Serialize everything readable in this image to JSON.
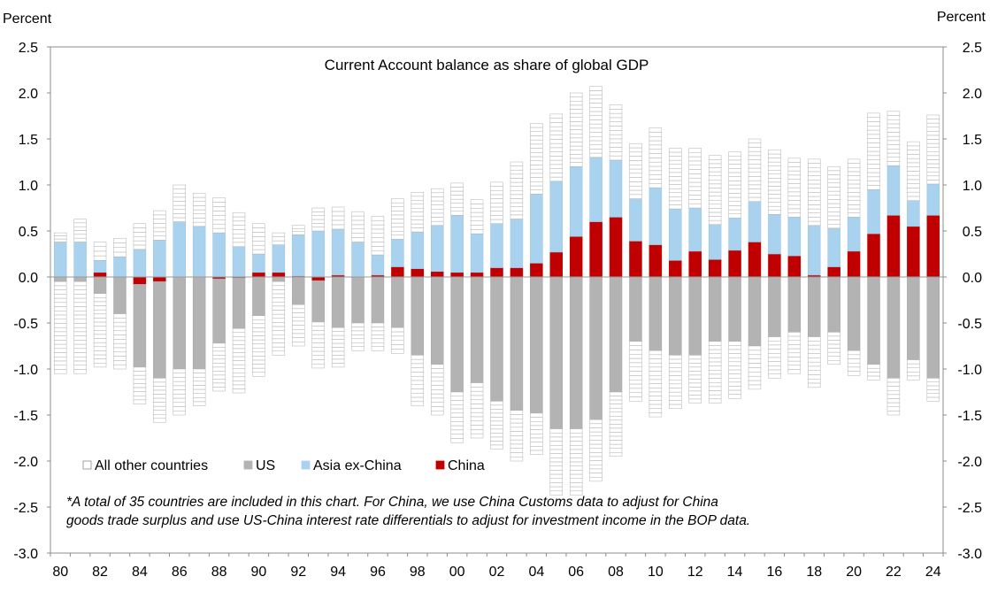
{
  "chart_data": {
    "type": "bar",
    "stacked": true,
    "title": "Current Account balance as share of global GDP",
    "ylabel_left": "Percent",
    "ylabel_right": "Percent",
    "ylim": [
      -3.0,
      2.5
    ],
    "y_ticks": [
      "2.5",
      "2.0",
      "1.5",
      "1.0",
      "0.5",
      "0.0",
      "-0.5",
      "-1.0",
      "-1.5",
      "-2.0",
      "-2.5",
      "-3.0"
    ],
    "x_ticks": [
      "80",
      "82",
      "84",
      "86",
      "88",
      "90",
      "92",
      "94",
      "96",
      "98",
      "00",
      "02",
      "04",
      "06",
      "08",
      "10",
      "12",
      "14",
      "16",
      "18",
      "20",
      "22",
      "24"
    ],
    "categories": [
      "1980",
      "1981",
      "1982",
      "1983",
      "1984",
      "1985",
      "1986",
      "1987",
      "1988",
      "1989",
      "1990",
      "1991",
      "1992",
      "1993",
      "1994",
      "1995",
      "1996",
      "1997",
      "1998",
      "1999",
      "2000",
      "2001",
      "2002",
      "2003",
      "2004",
      "2005",
      "2006",
      "2007",
      "2008",
      "2009",
      "2010",
      "2011",
      "2012",
      "2013",
      "2014",
      "2015",
      "2016",
      "2017",
      "2018",
      "2019",
      "2020",
      "2021",
      "2022",
      "2023",
      "2024"
    ],
    "legend_position": "bottom-left",
    "grid": false,
    "colors": {
      "All other countries": "#ffffff",
      "US": "#b3b3b3",
      "Asia ex-China": "#a9d2ee",
      "China": "#c00000"
    },
    "series": [
      {
        "name": "China",
        "values": [
          0,
          0,
          0.05,
          0,
          -0.08,
          -0.05,
          0,
          0,
          -0.02,
          -0.01,
          0.05,
          0.05,
          0.01,
          -0.04,
          0.02,
          0,
          0.02,
          0.11,
          0.09,
          0.06,
          0.05,
          0.05,
          0.1,
          0.1,
          0.15,
          0.27,
          0.44,
          0.6,
          0.65,
          0.39,
          0.35,
          0.18,
          0.28,
          0.19,
          0.29,
          0.38,
          0.25,
          0.23,
          0.02,
          0.11,
          0.28,
          0.47,
          0.67,
          0.55,
          0.67
        ]
      },
      {
        "name": "Asia ex-China",
        "values": [
          0.38,
          0.38,
          0.13,
          0.22,
          0.3,
          0.4,
          0.6,
          0.55,
          0.48,
          0.33,
          0.2,
          0.3,
          0.45,
          0.5,
          0.5,
          0.38,
          0.22,
          0.3,
          0.4,
          0.5,
          0.62,
          0.42,
          0.48,
          0.53,
          0.75,
          0.77,
          0.76,
          0.7,
          0.62,
          0.46,
          0.62,
          0.56,
          0.47,
          0.38,
          0.35,
          0.44,
          0.43,
          0.42,
          0.54,
          0.42,
          0.37,
          0.48,
          0.54,
          0.28,
          0.34
        ]
      },
      {
        "name": "US",
        "values": [
          -0.05,
          -0.05,
          -0.18,
          -0.4,
          -0.9,
          -1.05,
          -1.0,
          -1.0,
          -0.7,
          -0.55,
          -0.42,
          -0.05,
          -0.3,
          -0.45,
          -0.55,
          -0.5,
          -0.5,
          -0.55,
          -0.85,
          -0.95,
          -1.25,
          -1.15,
          -1.35,
          -1.45,
          -1.48,
          -1.65,
          -1.65,
          -1.55,
          -1.25,
          -0.7,
          -0.8,
          -0.85,
          -0.85,
          -0.7,
          -0.7,
          -0.75,
          -0.65,
          -0.6,
          -0.65,
          -0.6,
          -0.8,
          -0.95,
          -1.1,
          -0.9,
          -1.1
        ]
      },
      {
        "name": "All other countries",
        "values_pos": [
          0.1,
          0.25,
          0.2,
          0.2,
          0.28,
          0.32,
          0.4,
          0.36,
          0.38,
          0.37,
          0.33,
          0.13,
          0.1,
          0.25,
          0.24,
          0.33,
          0.42,
          0.44,
          0.43,
          0.4,
          0.35,
          0.37,
          0.45,
          0.62,
          0.77,
          0.73,
          0.8,
          0.77,
          0.6,
          0.6,
          0.65,
          0.66,
          0.65,
          0.75,
          0.72,
          0.68,
          0.7,
          0.64,
          0.72,
          0.67,
          0.63,
          0.83,
          0.59,
          0.64,
          0.75
        ],
        "values_neg": [
          -1.0,
          -1.0,
          -0.8,
          -0.6,
          -0.4,
          -0.48,
          -0.5,
          -0.4,
          -0.52,
          -0.7,
          -0.66,
          -0.8,
          -0.45,
          -0.5,
          -0.43,
          -0.3,
          -0.3,
          -0.28,
          -0.55,
          -0.55,
          -0.55,
          -0.6,
          -0.52,
          -0.55,
          -0.45,
          -0.72,
          -0.72,
          -0.67,
          -0.7,
          -0.65,
          -0.72,
          -0.58,
          -0.52,
          -0.67,
          -0.62,
          -0.47,
          -0.45,
          -0.45,
          -0.55,
          -0.35,
          -0.27,
          -0.17,
          -0.4,
          -0.22,
          -0.25
        ]
      }
    ],
    "legend": [
      {
        "label": "All other countries",
        "color": "#ffffff"
      },
      {
        "label": "US",
        "color": "#b3b3b3"
      },
      {
        "label": "Asia ex-China",
        "color": "#a9d2ee"
      },
      {
        "label": "China",
        "color": "#c00000"
      }
    ],
    "footnote": [
      "*A total of 35 countries are included in this chart. For China, we use China Customs data to adjust for China",
      "goods trade surplus and use US-China interest rate differentials to adjust for investment income in the BOP data."
    ]
  }
}
